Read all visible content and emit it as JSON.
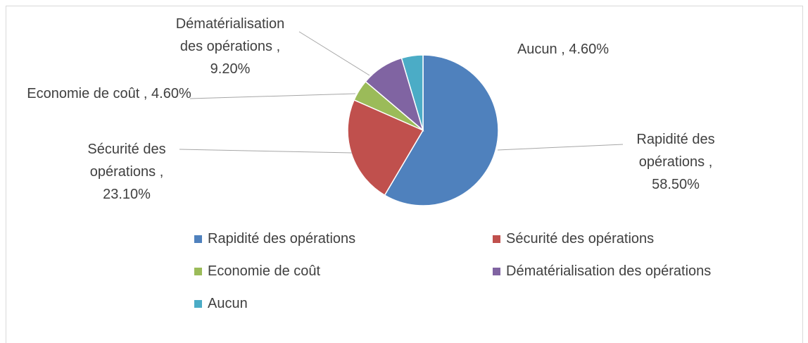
{
  "chart_data": {
    "type": "pie",
    "categories": [
      "Rapidité des opérations",
      "Sécurité des opérations",
      "Economie de coût",
      "Dématérialisation des opérations",
      "Aucun"
    ],
    "values": [
      58.5,
      23.1,
      4.6,
      9.2,
      4.6
    ],
    "value_labels": [
      "Rapidité des opérations , 58.50%",
      "Sécurité des opérations , 23.10%",
      "Economie de coût , 4.60%",
      "Dématérialisation des opérations , 9.20%",
      "Aucun , 4.60%"
    ],
    "colors": [
      "#4f81bd",
      "#c0504d",
      "#9bbb59",
      "#8064a2",
      "#4bacc6"
    ],
    "legend": "bottom"
  }
}
